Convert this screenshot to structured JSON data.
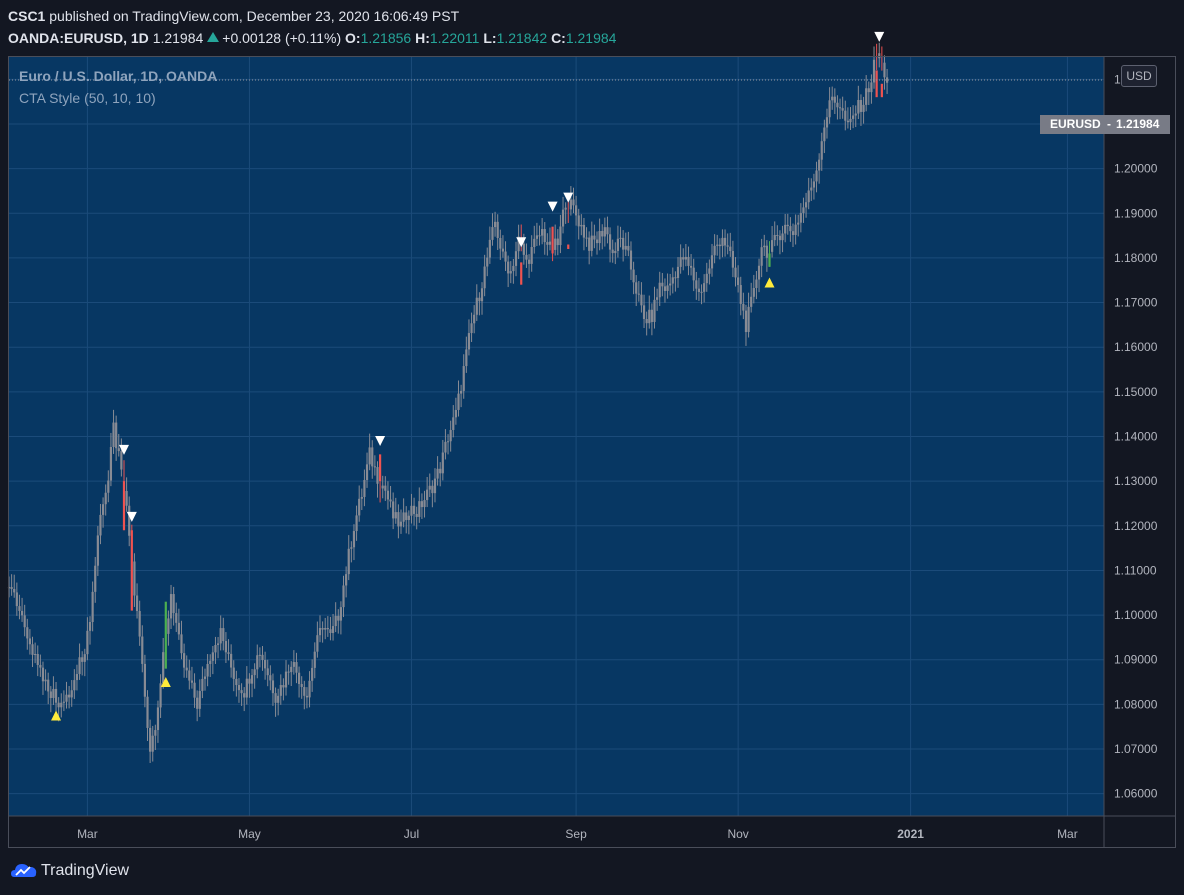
{
  "header": {
    "publisher": "CSC1",
    "published_text": "published on TradingView.com, December 23, 2020 16:06:49 PST",
    "symbol": "OANDA:EURUSD, 1D",
    "last": "1.21984",
    "change": "+0.00128 (+0.11%)",
    "o_label": "O:",
    "o": "1.21856",
    "h_label": "H:",
    "h": "1.22011",
    "l_label": "L:",
    "l": "1.21842",
    "c_label": "C:",
    "c": "1.21984"
  },
  "legend": {
    "title": "Euro / U.S. Dollar, 1D, OANDA",
    "indicator": "CTA Style (50, 10, 10)"
  },
  "currency_button": "USD",
  "price_tag": {
    "symbol": "EURUSD",
    "value": "1.21984"
  },
  "brand": "TradingView",
  "colors": {
    "pane_bg": "#073763",
    "page_bg": "#131722",
    "candle": "#888b94",
    "bull": "#4caf50",
    "bear": "#ef5350",
    "buy_marker": "#ffeb3b",
    "sell_marker": "#ffffff"
  },
  "chart_data": {
    "type": "candlestick",
    "ylim": [
      1.055,
      1.225
    ],
    "yticks": [
      "1.06000",
      "1.07000",
      "1.08000",
      "1.09000",
      "1.10000",
      "1.11000",
      "1.12000",
      "1.13000",
      "1.14000",
      "1.15000",
      "1.16000",
      "1.17000",
      "1.18000",
      "1.19000",
      "1.20000",
      "1.21000",
      "1.22000"
    ],
    "xticks": [
      {
        "label": "Mar",
        "day": 1
      },
      {
        "label": "May",
        "day": 63
      },
      {
        "label": "Jul",
        "day": 125
      },
      {
        "label": "Sep",
        "day": 188
      },
      {
        "label": "Nov",
        "day": 250
      },
      {
        "label": "2021",
        "day": 316
      },
      {
        "label": "Mar",
        "day": 376
      }
    ],
    "xlim": [
      -29,
      390
    ],
    "close_series": [
      [
        -29,
        1.106
      ],
      [
        -26,
        1.102
      ],
      [
        -23,
        1.097
      ],
      [
        -20,
        1.092
      ],
      [
        -17,
        1.088
      ],
      [
        -14,
        1.084
      ],
      [
        -11,
        1.0815
      ],
      [
        -8,
        1.08
      ],
      [
        -5,
        1.083
      ],
      [
        -2,
        1.089
      ],
      [
        1,
        1.095
      ],
      [
        3,
        1.105
      ],
      [
        5,
        1.118
      ],
      [
        7,
        1.126
      ],
      [
        9,
        1.13
      ],
      [
        11,
        1.142
      ],
      [
        13,
        1.135
      ],
      [
        15,
        1.128
      ],
      [
        17,
        1.118
      ],
      [
        19,
        1.105
      ],
      [
        21,
        1.095
      ],
      [
        23,
        1.082
      ],
      [
        25,
        1.07
      ],
      [
        27,
        1.076
      ],
      [
        29,
        1.085
      ],
      [
        31,
        1.095
      ],
      [
        33,
        1.105
      ],
      [
        35,
        1.098
      ],
      [
        37,
        1.09
      ],
      [
        40,
        1.085
      ],
      [
        43,
        1.08
      ],
      [
        46,
        1.087
      ],
      [
        49,
        1.093
      ],
      [
        52,
        1.096
      ],
      [
        55,
        1.09
      ],
      [
        58,
        1.085
      ],
      [
        61,
        1.083
      ],
      [
        64,
        1.088
      ],
      [
        67,
        1.092
      ],
      [
        70,
        1.087
      ],
      [
        73,
        1.082
      ],
      [
        76,
        1.085
      ],
      [
        79,
        1.09
      ],
      [
        82,
        1.086
      ],
      [
        85,
        1.082
      ],
      [
        88,
        1.092
      ],
      [
        91,
        1.098
      ],
      [
        94,
        1.095
      ],
      [
        97,
        1.1
      ],
      [
        100,
        1.11
      ],
      [
        103,
        1.12
      ],
      [
        106,
        1.127
      ],
      [
        109,
        1.136
      ],
      [
        112,
        1.131
      ],
      [
        115,
        1.128
      ],
      [
        118,
        1.122
      ],
      [
        121,
        1.12
      ],
      [
        124,
        1.124
      ],
      [
        127,
        1.123
      ],
      [
        130,
        1.126
      ],
      [
        133,
        1.129
      ],
      [
        136,
        1.133
      ],
      [
        139,
        1.14
      ],
      [
        142,
        1.145
      ],
      [
        145,
        1.155
      ],
      [
        148,
        1.165
      ],
      [
        151,
        1.172
      ],
      [
        154,
        1.18
      ],
      [
        157,
        1.188
      ],
      [
        160,
        1.18
      ],
      [
        163,
        1.177
      ],
      [
        166,
        1.184
      ],
      [
        169,
        1.179
      ],
      [
        172,
        1.183
      ],
      [
        175,
        1.186
      ],
      [
        178,
        1.182
      ],
      [
        181,
        1.183
      ],
      [
        184,
        1.193
      ],
      [
        187,
        1.191
      ],
      [
        190,
        1.187
      ],
      [
        193,
        1.183
      ],
      [
        196,
        1.184
      ],
      [
        199,
        1.187
      ],
      [
        202,
        1.181
      ],
      [
        205,
        1.184
      ],
      [
        208,
        1.18
      ],
      [
        211,
        1.173
      ],
      [
        214,
        1.166
      ],
      [
        217,
        1.167
      ],
      [
        220,
        1.174
      ],
      [
        223,
        1.173
      ],
      [
        226,
        1.177
      ],
      [
        229,
        1.18
      ],
      [
        232,
        1.177
      ],
      [
        235,
        1.172
      ],
      [
        238,
        1.176
      ],
      [
        241,
        1.182
      ],
      [
        244,
        1.185
      ],
      [
        247,
        1.18
      ],
      [
        250,
        1.173
      ],
      [
        253,
        1.165
      ],
      [
        256,
        1.172
      ],
      [
        259,
        1.183
      ],
      [
        262,
        1.181
      ],
      [
        265,
        1.185
      ],
      [
        268,
        1.187
      ],
      [
        271,
        1.186
      ],
      [
        274,
        1.19
      ],
      [
        277,
        1.194
      ],
      [
        280,
        1.2
      ],
      [
        283,
        1.21
      ],
      [
        286,
        1.216
      ],
      [
        289,
        1.214
      ],
      [
        292,
        1.209
      ],
      [
        295,
        1.213
      ],
      [
        298,
        1.215
      ],
      [
        301,
        1.22
      ],
      [
        303,
        1.226
      ],
      [
        305,
        1.223
      ],
      [
        307,
        1.2198
      ]
    ],
    "colored_candles": [
      {
        "day": 15,
        "color": "bear",
        "top": 1.13,
        "bottom": 1.119
      },
      {
        "day": 18,
        "color": "bear",
        "top": 1.119,
        "bottom": 1.101
      },
      {
        "day": 31,
        "color": "bull",
        "top": 1.103,
        "bottom": 1.088
      },
      {
        "day": 113,
        "color": "bear",
        "top": 1.136,
        "bottom": 1.13
      },
      {
        "day": 167,
        "color": "bear",
        "top": 1.179,
        "bottom": 1.174
      },
      {
        "day": 179,
        "color": "bear",
        "top": 1.187,
        "bottom": 1.181
      },
      {
        "day": 185,
        "color": "bear",
        "top": 1.183,
        "bottom": 1.182
      },
      {
        "day": 262,
        "color": "bull",
        "top": 1.181,
        "bottom": 1.178
      },
      {
        "day": 303,
        "color": "bear",
        "top": 1.222,
        "bottom": 1.216
      },
      {
        "day": 305,
        "color": "bear",
        "top": 1.219,
        "bottom": 1.216
      }
    ],
    "buy_signals": [
      {
        "day": -11,
        "price": 1.0775
      },
      {
        "day": 31,
        "price": 1.085
      },
      {
        "day": 262,
        "price": 1.1745
      }
    ],
    "sell_signals": [
      {
        "day": 15,
        "price": 1.137
      },
      {
        "day": 18,
        "price": 1.122
      },
      {
        "day": 113,
        "price": 1.139
      },
      {
        "day": 167,
        "price": 1.1835
      },
      {
        "day": 179,
        "price": 1.1915
      },
      {
        "day": 185,
        "price": 1.1935
      },
      {
        "day": 304,
        "price": 1.2295
      }
    ],
    "last_price": 1.21984
  }
}
